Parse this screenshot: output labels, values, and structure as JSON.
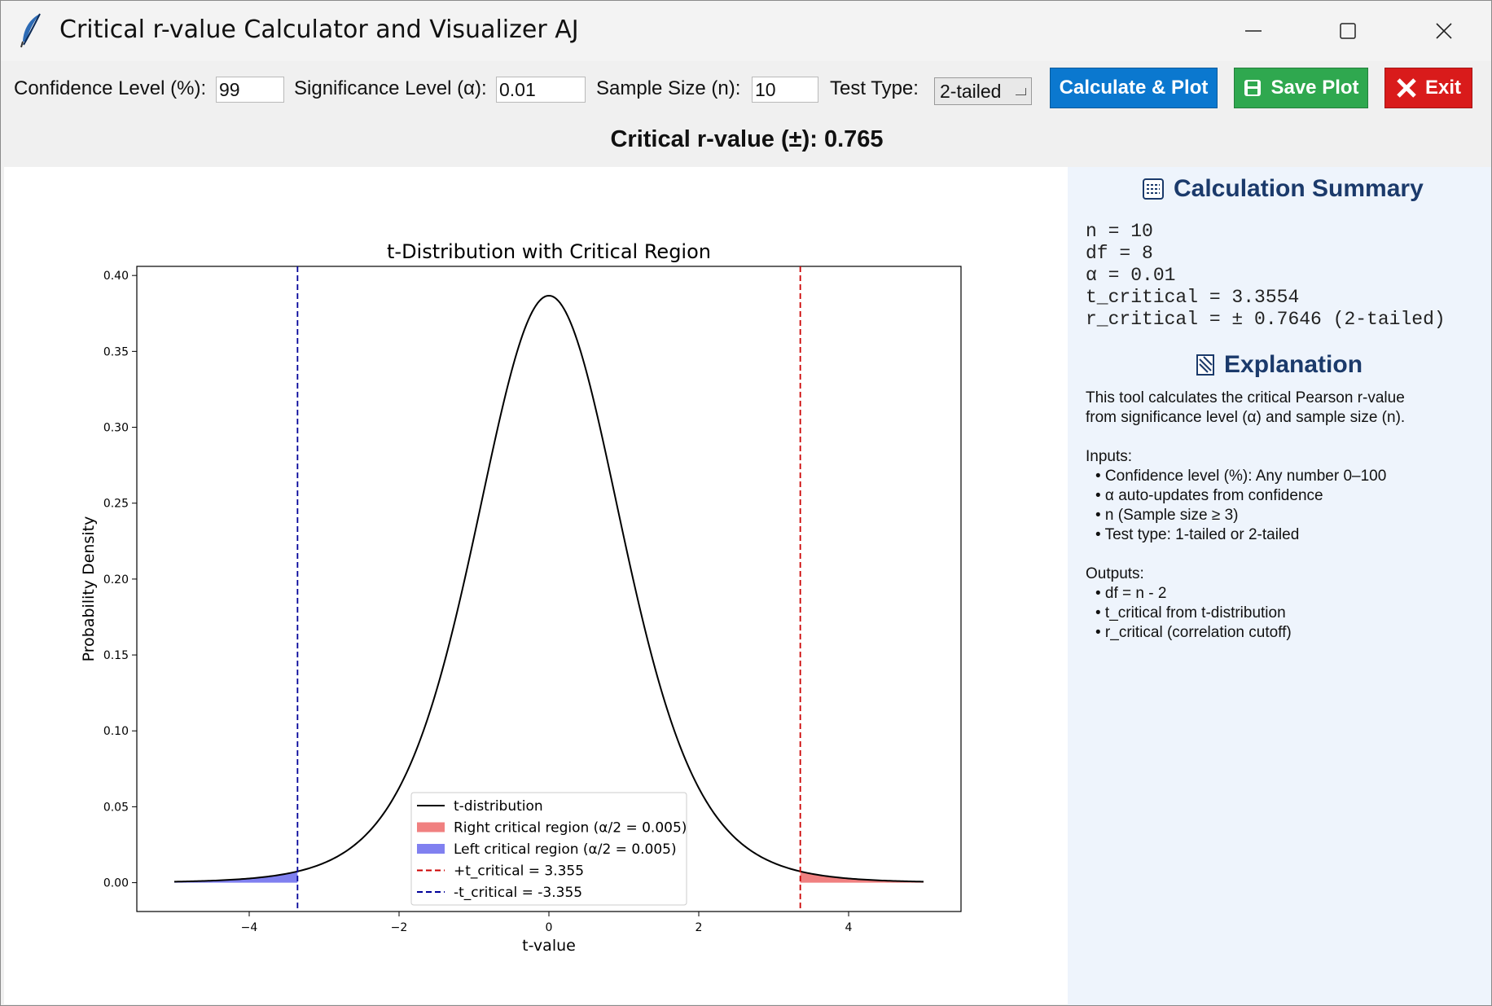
{
  "window": {
    "title": "Critical r-value Calculator and Visualizer AJ"
  },
  "toolbar": {
    "confidence_label": "Confidence Level (%):",
    "confidence_value": "99",
    "alpha_label": "Significance Level (α):",
    "alpha_value": "0.01",
    "n_label": "Sample Size (n):",
    "n_value": "10",
    "test_label": "Test Type:",
    "test_value": "2-tailed",
    "calc_button": "Calculate & Plot",
    "save_button": "Save Plot",
    "exit_button": "Exit"
  },
  "result": {
    "text": "Critical r-value (±): 0.765"
  },
  "sidebar": {
    "summary_title": "Calculation Summary",
    "summary_lines": [
      "n = 10",
      "df = 8",
      "α = 0.01",
      "t_critical = 3.3554",
      "r_critical = ± 0.7646 (2-tailed)"
    ],
    "explanation_title": "Explanation",
    "explanation_intro": [
      "This tool calculates the critical Pearson r-value",
      "from significance level (α) and sample size (n)."
    ],
    "inputs_title": "Inputs:",
    "inputs": [
      "• Confidence level (%): Any number 0–100",
      "• α auto-updates from confidence",
      "• n (Sample size ≥ 3)",
      "• Test type: 1-tailed or 2-tailed"
    ],
    "outputs_title": "Outputs:",
    "outputs": [
      "• df = n - 2",
      "• t_critical from t-distribution",
      "• r_critical (correlation cutoff)"
    ]
  },
  "colors": {
    "calc": "#0b78cf",
    "save": "#2fa84f",
    "exit": "#d91b1b",
    "sidebar_heading": "#1b3a6b"
  },
  "chart_data": {
    "type": "line",
    "title": "t-Distribution with Critical Region",
    "xlabel": "t-value",
    "ylabel": "Probability Density",
    "df": 8,
    "xlim": [
      -5.5,
      5.5
    ],
    "ylim": [
      -0.019,
      0.406
    ],
    "x_ticks": [
      -4,
      -2,
      0,
      2,
      4
    ],
    "y_ticks": [
      0.0,
      0.05,
      0.1,
      0.15,
      0.2,
      0.25,
      0.3,
      0.35,
      0.4
    ],
    "x_tick_labels": [
      "−4",
      "−2",
      "0",
      "2",
      "4"
    ],
    "y_tick_labels": [
      "0.00",
      "0.05",
      "0.10",
      "0.15",
      "0.20",
      "0.25",
      "0.30",
      "0.35",
      "0.40"
    ],
    "curve_range": [
      -5,
      5
    ],
    "t_critical": 3.355,
    "series": [
      {
        "name": "t-distribution",
        "color": "#000000",
        "style": "solid"
      },
      {
        "name": "Right critical region (α/2 = 0.005)",
        "color": "#f08080",
        "style": "fill"
      },
      {
        "name": "Left critical region (α/2 = 0.005)",
        "color": "#8080f0",
        "style": "fill"
      },
      {
        "name": "+t_critical = 3.355",
        "color": "#cc0000",
        "style": "dashed"
      },
      {
        "name": "-t_critical = -3.355",
        "color": "#000099",
        "style": "dashed"
      }
    ],
    "legend": "lower center",
    "grid": false
  }
}
